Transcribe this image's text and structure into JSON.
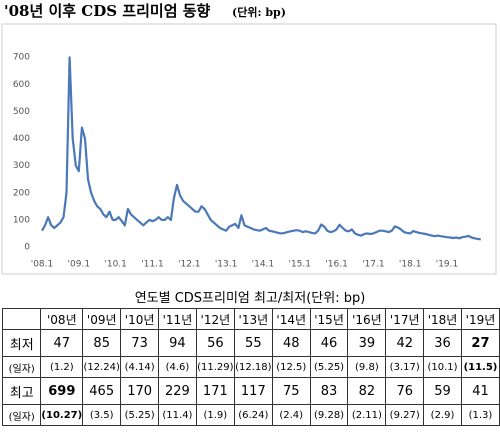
{
  "chart_data": {
    "type": "line",
    "title": "'08년 이후 CDS 프리미엄 동향",
    "unit": "(단위: bp)",
    "categories": [
      "'08.1",
      null,
      null,
      null,
      null,
      null,
      null,
      null,
      null,
      null,
      null,
      null,
      "'09.1",
      null,
      null,
      null,
      null,
      null,
      null,
      null,
      null,
      null,
      null,
      null,
      "'10.1",
      null,
      null,
      null,
      null,
      null,
      null,
      null,
      null,
      null,
      null,
      null,
      "'11.1",
      null,
      null,
      null,
      null,
      null,
      null,
      null,
      null,
      null,
      null,
      null,
      "'12.1",
      null,
      null,
      null,
      null,
      null,
      null,
      null,
      null,
      null,
      null,
      null,
      "'13.1",
      null,
      null,
      null,
      null,
      null,
      null,
      null,
      null,
      null,
      null,
      null,
      "'14.1",
      null,
      null,
      null,
      null,
      null,
      null,
      null,
      null,
      null,
      null,
      null,
      "'15.1",
      null,
      null,
      null,
      null,
      null,
      null,
      null,
      null,
      null,
      null,
      null,
      "'16.1",
      null,
      null,
      null,
      null,
      null,
      null,
      null,
      null,
      null,
      null,
      null,
      "'17.1",
      null,
      null,
      null,
      null,
      null,
      null,
      null,
      null,
      null,
      null,
      null,
      "'18.1",
      null,
      null,
      null,
      null,
      null,
      null,
      null,
      null,
      null,
      null,
      null,
      "'19.1",
      null,
      null,
      null,
      null,
      null,
      null,
      null,
      null,
      null,
      null,
      null
    ],
    "series": [
      {
        "color": "#4a78b8",
        "values": [
          60,
          80,
          110,
          80,
          70,
          80,
          90,
          110,
          200,
          699,
          400,
          300,
          280,
          440,
          400,
          250,
          200,
          170,
          150,
          140,
          120,
          110,
          130,
          100,
          100,
          110,
          95,
          80,
          140,
          120,
          110,
          100,
          90,
          80,
          90,
          100,
          95,
          100,
          110,
          100,
          100,
          110,
          100,
          180,
          229,
          190,
          170,
          160,
          150,
          140,
          130,
          130,
          150,
          140,
          120,
          100,
          90,
          80,
          70,
          65,
          60,
          75,
          80,
          85,
          70,
          117,
          80,
          75,
          70,
          65,
          62,
          60,
          65,
          70,
          60,
          58,
          55,
          52,
          50,
          52,
          55,
          58,
          60,
          62,
          60,
          55,
          58,
          55,
          52,
          50,
          60,
          83,
          75,
          60,
          55,
          58,
          65,
          82,
          70,
          60,
          58,
          65,
          50,
          45,
          42,
          48,
          50,
          48,
          50,
          55,
          60,
          60,
          58,
          55,
          60,
          76,
          72,
          65,
          55,
          52,
          50,
          59,
          55,
          52,
          50,
          48,
          45,
          42,
          40,
          42,
          40,
          38,
          36,
          35,
          33,
          35,
          32,
          36,
          38,
          41,
          35,
          32,
          30,
          28
        ]
      }
    ],
    "ylim": [
      0,
      800
    ],
    "yticks": [
      0,
      100,
      200,
      300,
      400,
      500,
      600,
      700
    ],
    "grid": false
  },
  "table": {
    "title": "연도별 CDS프리미엄 최고/최저(단위: bp)",
    "headers": [
      "'08년",
      "'09년",
      "'10년",
      "'11년",
      "'12년",
      "'13년",
      "'14년",
      "'15년",
      "'16년",
      "'17년",
      "'18년",
      "'19년"
    ],
    "rows": [
      {
        "label": "최저",
        "cells": [
          47,
          85,
          73,
          94,
          56,
          55,
          48,
          46,
          39,
          42,
          36,
          27
        ]
      },
      {
        "label": "(일자)",
        "cells": [
          "(1.2)",
          "(12.24)",
          "(4.14)",
          "(4.6)",
          "(11.29)",
          "(12.18)",
          "(12.5)",
          "(5.25)",
          "(9.8)",
          "(3.17)",
          "(10.1)",
          "(11.5)"
        ]
      },
      {
        "label": "최고",
        "cells": [
          699,
          465,
          170,
          229,
          171,
          117,
          75,
          83,
          82,
          76,
          59,
          41
        ]
      },
      {
        "label": "(일자)",
        "cells": [
          "(10.27)",
          "(3.5)",
          "(5.25)",
          "(11.4)",
          "(1.9)",
          "(6.24)",
          "(2.4)",
          "(9.28)",
          "(2.11)",
          "(9.27)",
          "(2.9)",
          "(1.3)"
        ]
      }
    ]
  }
}
